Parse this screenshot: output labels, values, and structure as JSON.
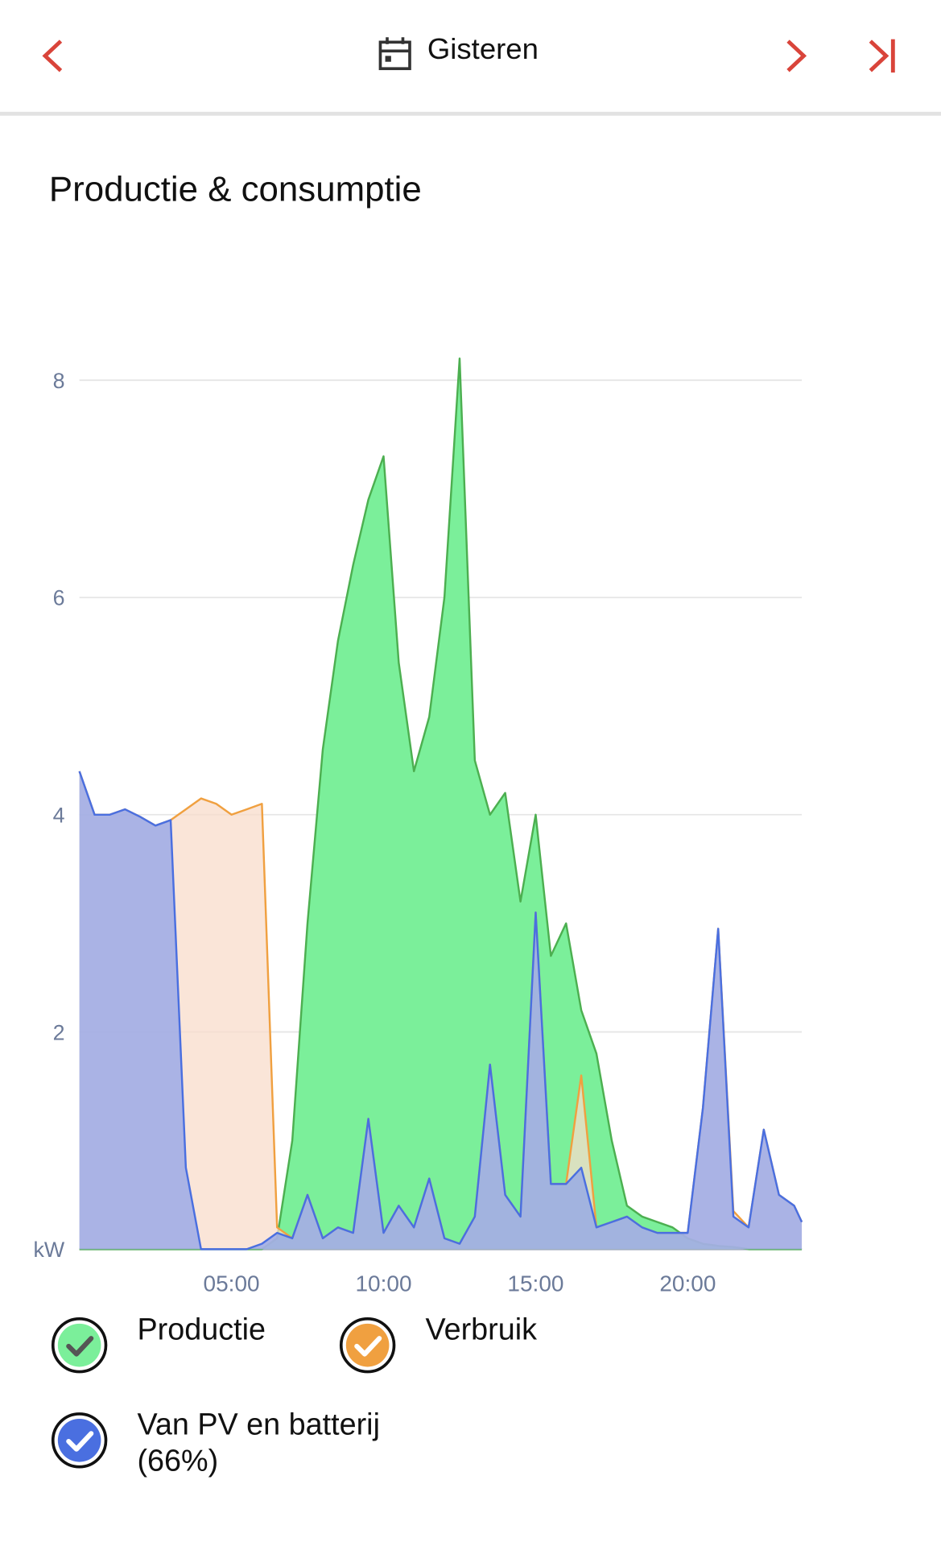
{
  "header": {
    "title": "Gisteren"
  },
  "chart_data": {
    "type": "area",
    "title": "Productie & consumptie",
    "x": [
      0,
      0.5,
      1,
      1.5,
      2,
      2.5,
      3,
      3.5,
      4,
      4.5,
      5,
      5.5,
      6,
      6.5,
      7,
      7.5,
      8,
      8.5,
      9,
      9.5,
      10,
      10.5,
      11,
      11.5,
      12,
      12.5,
      13,
      13.5,
      14,
      14.5,
      15,
      15.5,
      16,
      16.5,
      17,
      17.5,
      18,
      18.5,
      19,
      19.5,
      20,
      20.5,
      21,
      21.5,
      22,
      22.5,
      23,
      23.5,
      23.75
    ],
    "xlim": [
      0,
      23.75
    ],
    "xticks": [
      {
        "value": 5,
        "label": "05:00"
      },
      {
        "value": 10,
        "label": "10:00"
      },
      {
        "value": 15,
        "label": "15:00"
      },
      {
        "value": 20,
        "label": "20:00"
      }
    ],
    "ylim": [
      0,
      9
    ],
    "yticks": [
      {
        "value": 0,
        "label": "kW"
      },
      2,
      4,
      6,
      8
    ],
    "grid": true,
    "series": [
      {
        "name": "Productie",
        "color": "#4caf50",
        "fill": "#7bef9a",
        "values": [
          0,
          0,
          0,
          0,
          0,
          0,
          0,
          0,
          0,
          0,
          0,
          0,
          0,
          0.1,
          1.0,
          3.0,
          4.6,
          5.6,
          6.3,
          6.9,
          7.3,
          5.4,
          4.4,
          4.9,
          6.0,
          8.2,
          4.5,
          4.0,
          4.2,
          3.2,
          4.0,
          2.7,
          3.0,
          2.2,
          1.8,
          1.0,
          0.4,
          0.3,
          0.25,
          0.2,
          0.1,
          0.05,
          0.03,
          0.02,
          0,
          0,
          0,
          0,
          0
        ]
      },
      {
        "name": "Verbruik",
        "color": "#f0a040",
        "fill": "#f8dccb",
        "values": [
          4.4,
          4.0,
          4.0,
          4.05,
          3.98,
          3.9,
          3.95,
          4.05,
          4.15,
          4.1,
          4.0,
          4.05,
          4.1,
          0.2,
          0.1,
          0.5,
          0.1,
          0.2,
          0.15,
          1.2,
          0.15,
          0.4,
          0.2,
          0.65,
          0.1,
          0.05,
          0.3,
          1.7,
          0.5,
          0.3,
          3.1,
          0.6,
          0.6,
          1.6,
          0.2,
          0.25,
          0.3,
          0.2,
          0.15,
          0.15,
          0.15,
          1.3,
          2.95,
          0.35,
          0.2,
          1.1,
          0.5,
          0.4,
          0.25
        ]
      },
      {
        "name": "Van PV en batterij (66%)",
        "color": "#4a6fe0",
        "fill": "#8fa3ea",
        "values": [
          4.4,
          4.0,
          4.0,
          4.05,
          3.98,
          3.9,
          3.95,
          0.75,
          0,
          0,
          0,
          0,
          0.05,
          0.15,
          0.1,
          0.5,
          0.1,
          0.2,
          0.15,
          1.2,
          0.15,
          0.4,
          0.2,
          0.65,
          0.1,
          0.05,
          0.3,
          1.7,
          0.5,
          0.3,
          3.1,
          0.6,
          0.6,
          0.75,
          0.2,
          0.25,
          0.3,
          0.2,
          0.15,
          0.15,
          0.15,
          1.3,
          2.95,
          0.3,
          0.2,
          1.1,
          0.5,
          0.4,
          0.25
        ]
      }
    ]
  }
}
